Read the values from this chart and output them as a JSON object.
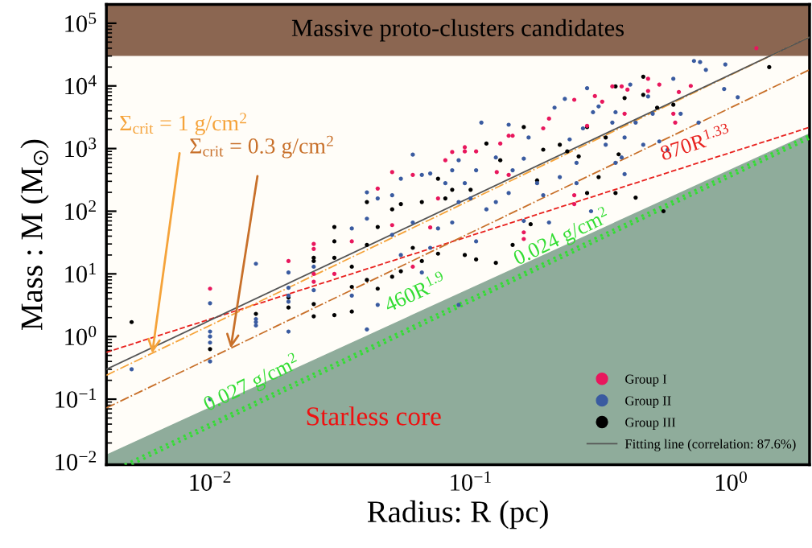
{
  "chart_data": {
    "type": "scatter",
    "xlabel": "Radius: R (pc)",
    "ylabel": "Mass : M (M$_{⊙}$)",
    "log": "xy",
    "legend": "bottom right",
    "xlim": [
      0.004,
      2
    ],
    "ylim": [
      0.009,
      200000
    ],
    "xticks": [
      {
        "value": 0.01,
        "label": "10$^{−2}$"
      },
      {
        "value": 0.1,
        "label": "10$^{−1}$"
      },
      {
        "value": 1,
        "label": "10$^{0}$"
      }
    ],
    "yticks": [
      {
        "value": 0.01,
        "label": "10$^{−2}$"
      },
      {
        "value": 0.1,
        "label": "10$^{−1}$"
      },
      {
        "value": 1,
        "label": "10$^{0}$"
      },
      {
        "value": 10,
        "label": "10$^{1}$"
      },
      {
        "value": 100,
        "label": "10$^{2}$"
      },
      {
        "value": 1000,
        "label": "10$^{3}$"
      },
      {
        "value": 10000,
        "label": "10$^{4}$"
      },
      {
        "value": 100000,
        "label": "10$^{5}$"
      }
    ],
    "bands": [
      {
        "axis": "y",
        "from": 30000,
        "to": 200000,
        "label": "Massive proto-clusters candidates",
        "color": "#8b6651"
      }
    ],
    "annotations": [
      {
        "text": "460R$^{1.9}$",
        "x": 0.066,
        "y": 2.6
      },
      {
        "text": "0.027 g/cm$^{2}$",
        "x": 0.0155,
        "y": 0.098
      },
      {
        "text": "0.024 g/cm$^{2}$",
        "x": 0.24,
        "y": 21
      },
      {
        "text": "870R$^{1.33}$",
        "x": 0.77,
        "y": 614
      },
      {
        "text": "Σ$_{crit}$ = 1 g/cm$^{2}$",
        "x": 0.006,
        "y": 0.54
      },
      {
        "text": "Σ$_{crit}$ = 0.3 g/cm$^{2}$",
        "x": 0.012,
        "y": 0.65
      },
      "Starless core"
    ],
    "series": [
      {
        "type": "area",
        "color": "#8fac9b",
        "line_style": "solid",
        "x": [
          0.004,
          2
        ],
        "values": [
          0.0128,
          1716
        ]
      },
      {
        "type": "line",
        "color": "#33dd33",
        "line_style": "dotted",
        "x": [
          0.0047,
          2
        ],
        "values": [
          0.009,
          1628
        ]
      },
      {
        "type": "line",
        "color": "#33dd33",
        "line_style": "dotted",
        "x": [
          0.005,
          2
        ],
        "values": [
          0.009,
          1448
        ]
      },
      {
        "type": "line",
        "color": "#e8221f",
        "line_style": "dashed",
        "x": [
          0.004,
          2
        ],
        "values": [
          0.56,
          2185
        ]
      },
      {
        "type": "line",
        "color": "#f5a33a",
        "line_style": "dashdot",
        "x": [
          0.004,
          2
        ],
        "values": [
          0.241,
          60320
        ]
      },
      {
        "type": "line",
        "color": "#c8702a",
        "line_style": "dashdot",
        "x": [
          0.004,
          2
        ],
        "values": [
          0.0724,
          18096
        ]
      },
      {
        "name": "Group I",
        "color": "#e8175d",
        "marker": "circle",
        "x": [
          0.01,
          0.02,
          0.025,
          0.025,
          0.025,
          0.025,
          0.03,
          0.035,
          0.044,
          0.05,
          0.05,
          0.06,
          0.06,
          0.08,
          0.085,
          0.095,
          0.105,
          0.13,
          0.14,
          0.145,
          0.14,
          0.16,
          0.16,
          0.2,
          0.25,
          0.28,
          0.3,
          0.32,
          0.35,
          0.38,
          0.39,
          0.4,
          0.48,
          0.48,
          0.53,
          0.6,
          0.7,
          0.63,
          1.25,
          0.25,
          0.25,
          0.19,
          0.126,
          0.095,
          0.075,
          0.07,
          0.61
        ],
        "values": [
          5.8,
          16,
          30,
          25,
          10,
          7.5,
          10,
          33,
          230,
          420,
          60,
          380,
          13,
          650,
          880,
          1050,
          900,
          1200,
          1600,
          1600,
          380,
          46,
          36,
          3000,
          6000,
          2300,
          6900,
          5600,
          9800,
          9800,
          3600,
          8700,
          13000,
          8300,
          10500,
          3600,
          10000,
          8000,
          40000,
          130,
          180,
          2100,
          420,
          900,
          160,
          55,
          2600
        ]
      },
      {
        "name": "Group II",
        "color": "#3a5ba0",
        "marker": "circle",
        "x": [
          0.005,
          0.01,
          0.01,
          0.01,
          0.01,
          0.01,
          0.01,
          0.015,
          0.015,
          0.015,
          0.015,
          0.02,
          0.02,
          0.02,
          0.02,
          0.02,
          0.025,
          0.025,
          0.035,
          0.035,
          0.04,
          0.04,
          0.04,
          0.044,
          0.044,
          0.05,
          0.05,
          0.054,
          0.054,
          0.06,
          0.06,
          0.065,
          0.065,
          0.07,
          0.07,
          0.075,
          0.08,
          0.085,
          0.085,
          0.09,
          0.09,
          0.09,
          0.095,
          0.1,
          0.105,
          0.105,
          0.11,
          0.115,
          0.125,
          0.125,
          0.14,
          0.14,
          0.145,
          0.16,
          0.16,
          0.167,
          0.18,
          0.19,
          0.2,
          0.21,
          0.22,
          0.23,
          0.24,
          0.255,
          0.27,
          0.28,
          0.29,
          0.295,
          0.31,
          0.33,
          0.35,
          0.36,
          0.38,
          0.39,
          0.41,
          0.43,
          0.46,
          0.48,
          0.5,
          0.6,
          0.57,
          0.64,
          0.72,
          0.76,
          0.8,
          0.75,
          0.94,
          0.95,
          1.06,
          0.53,
          0.39,
          0.36,
          0.255
        ],
        "values": [
          0.3,
          3.4,
          1.2,
          1.0,
          0.8,
          0.4,
          0.1,
          14.5,
          1.9,
          1.7,
          1.5,
          10.5,
          6,
          4.5,
          3.6,
          1.2,
          13,
          5.5,
          53,
          4.5,
          200,
          76,
          1.3,
          160,
          3.2,
          180,
          42,
          330,
          20,
          800,
          66,
          380,
          10.5,
          400,
          26,
          53,
          280,
          450,
          66,
          650,
          140,
          3.2,
          280,
          160,
          450,
          33,
          2600,
          107,
          720,
          140,
          2400,
          195,
          450,
          690,
          70,
          1500,
          280,
          180,
          66,
          4500,
          350,
          6200,
          1400,
          590,
          2100,
          9200,
          100,
          3800,
          4700,
          1150,
          2600,
          3800,
          720,
          1500,
          10500,
          2600,
          1150,
          6800,
          3600,
          13000,
          950,
          3600,
          25000,
          24000,
          18000,
          2600,
          8900,
          22000,
          6600,
          1300,
          390,
          590,
          280
        ]
      },
      {
        "name": "Group III",
        "color": "#000000",
        "marker": "circle",
        "x": [
          0.005,
          0.01,
          0.015,
          0.02,
          0.02,
          0.025,
          0.025,
          0.025,
          0.025,
          0.03,
          0.03,
          0.03,
          0.03,
          0.035,
          0.035,
          0.035,
          0.04,
          0.04,
          0.04,
          0.044,
          0.044,
          0.05,
          0.05,
          0.054,
          0.054,
          0.06,
          0.065,
          0.065,
          0.075,
          0.075,
          0.08,
          0.085,
          0.095,
          0.1,
          0.105,
          0.115,
          0.125,
          0.13,
          0.145,
          0.16,
          0.17,
          0.18,
          0.19,
          0.22,
          0.235,
          0.26,
          0.28,
          0.28,
          0.31,
          0.33,
          0.36,
          0.36,
          0.39,
          0.43,
          0.46,
          0.46,
          0.52,
          0.55,
          0.6,
          1.4,
          0.37
        ],
        "values": [
          1.7,
          0.63,
          2.3,
          4.2,
          2.9,
          18,
          16,
          3.3,
          2.1,
          56,
          33,
          18,
          2.2,
          13,
          6.2,
          2.5,
          140,
          29,
          8,
          56,
          5.8,
          107,
          9,
          130,
          11,
          26,
          140,
          16,
          330,
          21,
          160,
          220,
          20,
          220,
          17,
          1200,
          15,
          650,
          29,
          2200,
          62,
          310,
          960,
          1150,
          900,
          750,
          2200,
          195,
          350,
          1500,
          195,
          9800,
          6400,
          165,
          14000,
          7200,
          4500,
          100,
          5000,
          20000,
          810
        ]
      },
      {
        "type": "line",
        "name": "Fitting line (correlation: 87.6%)",
        "color": "#555555",
        "line_style": "solid",
        "x": [
          0.004,
          2
        ],
        "values": [
          0.3,
          60000
        ]
      }
    ]
  }
}
